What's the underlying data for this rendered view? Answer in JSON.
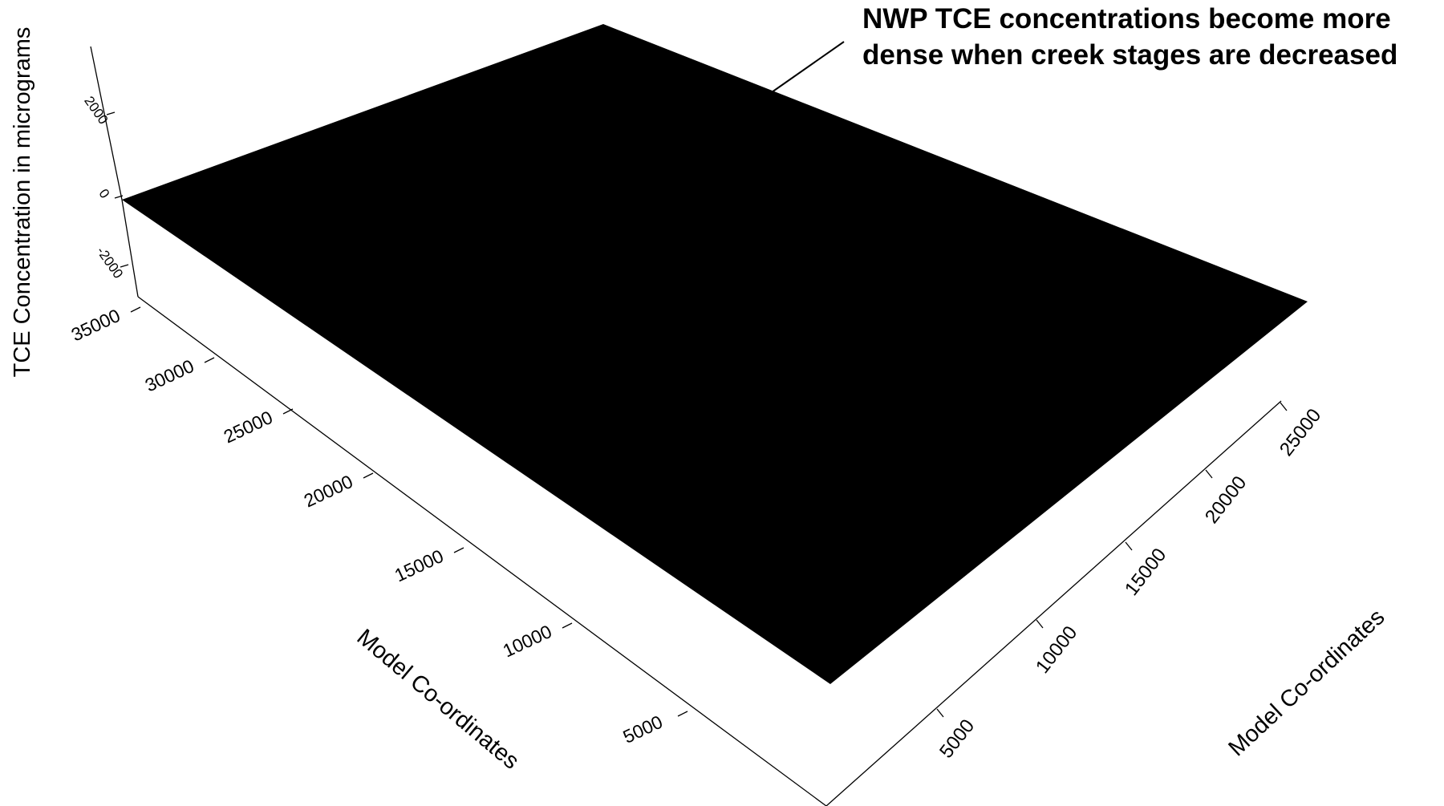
{
  "chart_data": {
    "type": "surface3d",
    "annotation": {
      "line1": "NWP TCE concentrations become more",
      "line2": "dense when creek stages are decreased"
    },
    "vertical_axis": {
      "label": "TCE Concentration in micrograms",
      "ticks": [
        "2000",
        "0",
        "-2000"
      ],
      "range": [
        -3000,
        3000
      ]
    },
    "left_axis": {
      "label": "Model Co-ordinates",
      "ticks": [
        "35000",
        "30000",
        "25000",
        "20000",
        "15000",
        "10000",
        "5000"
      ]
    },
    "right_axis": {
      "label": "Model Co-ordinates",
      "ticks": [
        "5000",
        "10000",
        "15000",
        "20000",
        "25000"
      ]
    },
    "surface": {
      "fill": "#000000",
      "value": 0,
      "description": "dense contour mesh rendered as solid black"
    }
  }
}
